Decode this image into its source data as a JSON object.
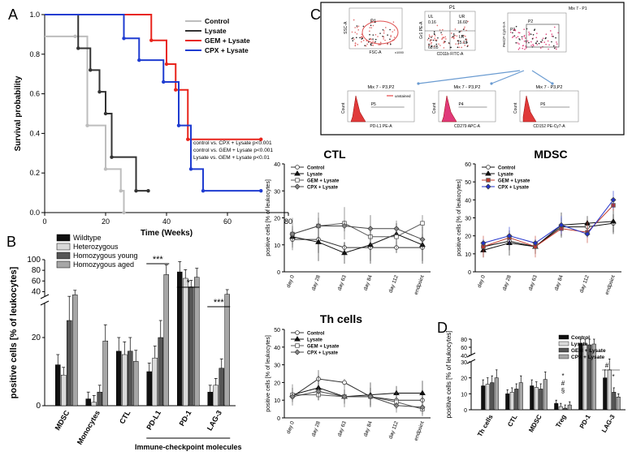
{
  "chart_data": [
    {
      "panel": "A",
      "type": "line",
      "subtype": "kaplan-meier",
      "xlabel": "Time (Weeks)",
      "ylabel": "Survival probability",
      "xlim": [
        0,
        80
      ],
      "ylim": [
        0,
        1
      ],
      "xticks": [
        0,
        20,
        40,
        60,
        80
      ],
      "yticks": [
        "0.0",
        "0.2",
        "0.4",
        "0.6",
        "0.8",
        "1.0"
      ],
      "series": [
        {
          "name": "Control",
          "color": "#bdbdbd",
          "x": [
            0,
            10,
            14,
            20,
            25,
            26
          ],
          "y": [
            0.89,
            0.89,
            0.44,
            0.22,
            0.11,
            0.0
          ]
        },
        {
          "name": "Lysate",
          "color": "#333333",
          "x": [
            0,
            11,
            15,
            18,
            20,
            22,
            30,
            34
          ],
          "y": [
            1.0,
            0.83,
            0.72,
            0.61,
            0.5,
            0.28,
            0.11,
            0.11
          ]
        },
        {
          "name": "GEM + Lysate",
          "color": "#e8241c",
          "x": [
            0,
            35,
            40,
            43,
            47,
            71
          ],
          "y": [
            1.0,
            0.87,
            0.75,
            0.62,
            0.37,
            0.37
          ]
        },
        {
          "name": "CPX + Lysate",
          "color": "#1f3cd1",
          "x": [
            0,
            26,
            31,
            39,
            44,
            48,
            52,
            71
          ],
          "y": [
            1.0,
            0.88,
            0.77,
            0.66,
            0.44,
            0.22,
            0.11,
            0.11
          ]
        }
      ],
      "annotations": [
        "control vs. CPX + Lysate   p<0.001",
        "control vs. GEM + Lysate   p<0.001",
        "Lysate vs. GEM + Lysate   p<0.01"
      ]
    },
    {
      "panel": "B",
      "type": "bar",
      "ylabel": "positive cells [% of leukocytes]",
      "categories": [
        "MDSC",
        "Monocytes",
        "CTL",
        "PD-L1",
        "PD-1",
        "LAG-3"
      ],
      "group_label": "Immune-checkpoint molecules",
      "yticks_low": [
        "0",
        "20"
      ],
      "yticks_high": [
        "40",
        "60",
        "80",
        "100"
      ],
      "series": [
        {
          "name": "Wildtype",
          "color": "#111111",
          "values": [
            12,
            2,
            16,
            10,
            77,
            4
          ]
        },
        {
          "name": "Heterozygous",
          "color": "#d9d9d9",
          "values": [
            9,
            1,
            15,
            14,
            65,
            6
          ]
        },
        {
          "name": "Homozygous young",
          "color": "#555555",
          "values": [
            25,
            4,
            16,
            20,
            49,
            11
          ]
        },
        {
          "name": "Homozygous aged",
          "color": "#a6a6a6",
          "values": [
            34,
            19,
            13,
            72,
            67,
            35
          ]
        }
      ],
      "significance": [
        {
          "category": "PD-L1",
          "label": "***"
        },
        {
          "category": "PD-1",
          "label": "*"
        },
        {
          "category": "LAG-3",
          "label": "***"
        }
      ]
    },
    {
      "panel": "C",
      "type": "line",
      "flow_labels": {
        "plot1_title": "",
        "plot1_gate": "P1",
        "plot1_xlabel": "FSC-A",
        "plot1_ylabel": "SSC-A",
        "plot1_x": "x1000",
        "plot2_title": "P1",
        "plot2_ul": "UL",
        "plot2_ul_v": "0.16",
        "plot2_ur": "UR",
        "plot2_ur_v": "16.60",
        "plot2_ll_v": "68.05",
        "plot2_lr": "LR",
        "plot2_lr_v": "15.18",
        "plot2_xlabel": "CD11b FITC-A",
        "plot2_ylabel": "Gr1 PE-A",
        "plot3_title": "Mix 7 - P1",
        "plot3_gate1": "P3",
        "plot3_gate2": "P2",
        "plot3_ylabel": "PerCP-Cy5-5-A",
        "hist1_title": "Mix 7 - P3,P2",
        "hist1_legend": "unstained",
        "hist1_xlabel": "PD-L1 PE-A",
        "hist1_ylabel": "Count",
        "hist1_gate": "P5",
        "hist2_title": "Mix 7 - P3,P2",
        "hist2_xlabel": "CD279 APC-A",
        "hist2_ylabel": "Count",
        "hist2_gate": "P4",
        "hist3_title": "Mix 7 - P3,P2",
        "hist3_xlabel": "CD152 PE-Cy7-A",
        "hist3_ylabel": "Count",
        "hist3_gate": "P6"
      },
      "xlabels": [
        "day 0",
        "day 28",
        "day 63",
        "day 84",
        "day 112",
        "endpoint"
      ],
      "ylabel": "positive cells [% of leukocytes]",
      "legend": [
        "Control",
        "Lysate",
        "GEM + Lysate",
        "CPX + Lysate"
      ],
      "subplots": [
        {
          "title": "CTL",
          "yticks": [
            "0",
            "10",
            "20",
            "30",
            "40"
          ],
          "ymax": 40,
          "series": [
            [
              12,
              12,
              9,
              9,
              9,
              9
            ],
            [
              13,
              11,
              7,
              10,
              14,
              10
            ],
            [
              14,
              17,
              18,
              13,
              13,
              18
            ],
            [
              14,
              17,
              17,
              16,
              16,
              12
            ]
          ]
        },
        {
          "title": "MDSC",
          "yticks": [
            "0",
            "10",
            "20",
            "30",
            "40",
            "50",
            "60"
          ],
          "ymax": 60,
          "series": [
            [
              14,
              17,
              14,
              25,
              25,
              27
            ],
            [
              12,
              16,
              14,
              26,
              27,
              28
            ],
            [
              14,
              19,
              14,
              24,
              22,
              37
            ],
            [
              16,
              20,
              16,
              26,
              21,
              40
            ]
          ]
        },
        {
          "title": "Th cells",
          "yticks": [
            "0",
            "10",
            "20",
            "30",
            "40",
            "50"
          ],
          "ymax": 50,
          "series": [
            [
              12,
              22,
              20,
              12,
              10,
              10
            ],
            [
              13,
              17,
              12,
              13,
              14,
              14
            ],
            [
              13,
              13,
              12,
              12,
              9,
              5
            ],
            [
              12,
              15,
              12,
              12,
              7,
              6
            ]
          ]
        }
      ]
    },
    {
      "panel": "D",
      "type": "bar",
      "ylabel": "positive cells [% of leukocytes]",
      "categories": [
        "Th cells",
        "CTL",
        "MDSC",
        "Treg",
        "PD-1",
        "LAG-3"
      ],
      "yticks_low": [
        "0",
        "10",
        "20",
        "30"
      ],
      "yticks_high": [
        "40",
        "60",
        "80"
      ],
      "series": [
        {
          "name": "Control",
          "color": "#111111",
          "values": [
            15,
            10,
            15,
            4,
            70,
            20
          ]
        },
        {
          "name": "Lysate",
          "color": "#d9d9d9",
          "values": [
            16,
            11,
            14,
            2,
            68,
            25
          ]
        },
        {
          "name": "GEM + Lysate",
          "color": "#555555",
          "values": [
            17,
            13,
            13,
            1,
            66,
            11
          ]
        },
        {
          "name": "CPX + Lysate",
          "color": "#a6a6a6",
          "values": [
            20,
            17,
            19,
            3,
            68,
            8
          ]
        }
      ],
      "significance": [
        {
          "category": "Treg",
          "label": "*"
        },
        {
          "category": "Treg",
          "label": "#"
        },
        {
          "category": "Treg",
          "label": "§"
        },
        {
          "category": "LAG-3",
          "label": "#"
        },
        {
          "category": "LAG-3",
          "label": "*"
        }
      ]
    }
  ]
}
